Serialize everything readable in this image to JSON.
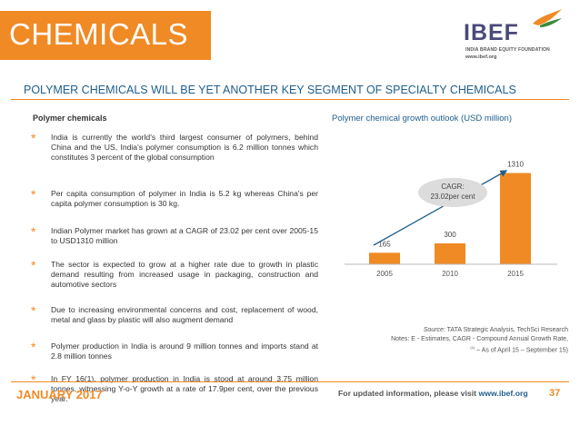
{
  "header": {
    "title": "CHEMICALS",
    "logo": {
      "name": "IBEF",
      "tagline": "INDIA BRAND EQUITY FOUNDATION",
      "url": "www.ibef.org"
    }
  },
  "subtitle": "POLYMER CHEMICALS WILL BE YET ANOTHER KEY SEGMENT OF SPECIALTY CHEMICALS",
  "left": {
    "heading": "Polymer chemicals",
    "bullets": [
      "India is currently the world's third largest consumer of polymers, behind China and the US, India's polymer consumption is 6.2 million tonnes which constitutes 3 percent of the global consumption",
      "Per capita consumption of polymer in India is 5.2 kg whereas China's per capita polymer consumption is 30 kg.",
      "Indian Polymer market has grown at a CAGR of 23.02 per cent over 2005-15 to USD1310 million",
      "The sector is expected to grow at a higher rate due to growth in plastic demand resulting from increased usage in packaging, construction and automotive sectors",
      "Due to increasing environmental concerns and cost, replacement of wood, metal and glass by plastic will also augment demand",
      "Polymer production in India is around 9 million tonnes and imports stand at 2.8 million tonnes",
      "In FY 16(1), polymer production in India is stood at around 3.75 million tonnes, witnessing Y-o-Y growth at a rate of 17.9per cent, over the previous year."
    ]
  },
  "chart_data": {
    "type": "bar",
    "title": "Polymer chemical growth outlook (USD million)",
    "categories": [
      "2005",
      "2010",
      "2015"
    ],
    "values": [
      165,
      300,
      1310
    ],
    "ylim": [
      0,
      1500
    ],
    "annotation": "CAGR: 23.02per cent",
    "color": "#f08a24",
    "grid": false
  },
  "source": {
    "label": "Source:",
    "text": " TATA Strategic Analysis, TechSci Research",
    "notes_line1": "Notes: E - Estimates, CAGR - Compound Annual Growth Rate,",
    "notes_sup": "(1)",
    "notes_line2": " – As of April 15 – September 15)"
  },
  "footer": {
    "date": "JANUARY 2017",
    "info_prefix": "For updated information, please visit ",
    "info_url": "www.ibef.org",
    "page": "37"
  },
  "colors": {
    "accent": "#f08a24",
    "blue": "#1f5e8c",
    "text": "#333333"
  }
}
